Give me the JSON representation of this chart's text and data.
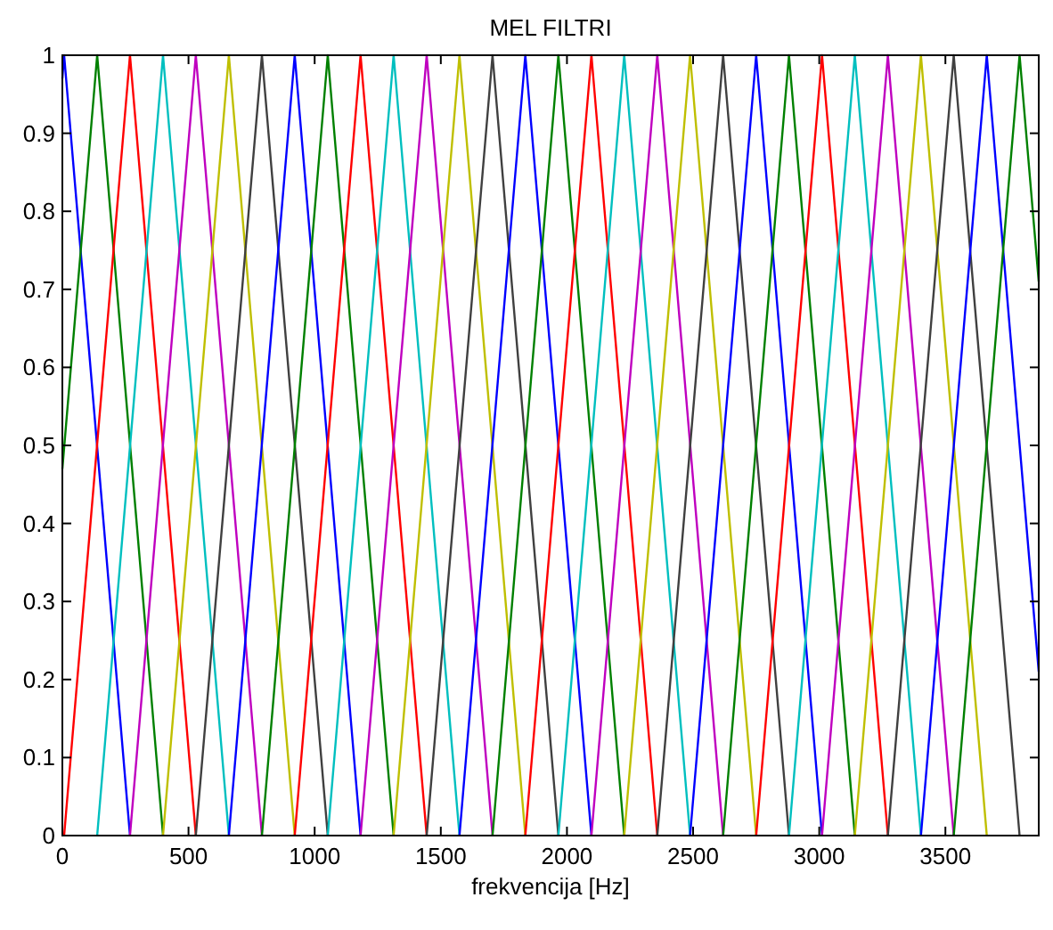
{
  "chart_data": {
    "type": "line",
    "title": "MEL FILTRI",
    "xlabel": "frekvencija [Hz]",
    "xlim": [
      0,
      3870
    ],
    "ylim": [
      0,
      1
    ],
    "xticks": [
      0,
      500,
      1000,
      1500,
      2000,
      2500,
      3000,
      3500
    ],
    "yticks": [
      0,
      0.1,
      0.2,
      0.3,
      0.4,
      0.5,
      0.6,
      0.7,
      0.8,
      0.9,
      1
    ],
    "grid": false,
    "marker": "none",
    "line_style": "solid",
    "series": [
      {
        "color": "#0000ff",
        "x": [
          0,
          7,
          268
        ],
        "values": [
          0.97,
          1,
          0
        ]
      },
      {
        "color": "#008000",
        "x": [
          0,
          138,
          399
        ],
        "values": [
          0.47,
          1,
          0
        ]
      },
      {
        "color": "#ff0000",
        "x": [
          7,
          268,
          529
        ],
        "values": [
          0,
          1,
          0
        ]
      },
      {
        "color": "#00bfbf",
        "x": [
          138,
          399,
          660
        ],
        "values": [
          0,
          1,
          0
        ]
      },
      {
        "color": "#bf00bf",
        "x": [
          268,
          529,
          791
        ],
        "values": [
          0,
          1,
          0
        ]
      },
      {
        "color": "#bfbf00",
        "x": [
          399,
          660,
          921
        ],
        "values": [
          0,
          1,
          0
        ]
      },
      {
        "color": "#404040",
        "x": [
          529,
          791,
          1052
        ],
        "values": [
          0,
          1,
          0
        ]
      },
      {
        "color": "#0000ff",
        "x": [
          660,
          921,
          1182
        ],
        "values": [
          0,
          1,
          0
        ]
      },
      {
        "color": "#008000",
        "x": [
          791,
          1052,
          1313
        ],
        "values": [
          0,
          1,
          0
        ]
      },
      {
        "color": "#ff0000",
        "x": [
          921,
          1182,
          1444
        ],
        "values": [
          0,
          1,
          0
        ]
      },
      {
        "color": "#00bfbf",
        "x": [
          1052,
          1313,
          1574
        ],
        "values": [
          0,
          1,
          0
        ]
      },
      {
        "color": "#bf00bf",
        "x": [
          1182,
          1444,
          1705
        ],
        "values": [
          0,
          1,
          0
        ]
      },
      {
        "color": "#bfbf00",
        "x": [
          1313,
          1574,
          1835
        ],
        "values": [
          0,
          1,
          0
        ]
      },
      {
        "color": "#404040",
        "x": [
          1444,
          1705,
          1966
        ],
        "values": [
          0,
          1,
          0
        ]
      },
      {
        "color": "#0000ff",
        "x": [
          1574,
          1835,
          2097
        ],
        "values": [
          0,
          1,
          0
        ]
      },
      {
        "color": "#008000",
        "x": [
          1705,
          1966,
          2227
        ],
        "values": [
          0,
          1,
          0
        ]
      },
      {
        "color": "#ff0000",
        "x": [
          1835,
          2097,
          2358
        ],
        "values": [
          0,
          1,
          0
        ]
      },
      {
        "color": "#00bfbf",
        "x": [
          1966,
          2227,
          2488
        ],
        "values": [
          0,
          1,
          0
        ]
      },
      {
        "color": "#bf00bf",
        "x": [
          2097,
          2358,
          2619
        ],
        "values": [
          0,
          1,
          0
        ]
      },
      {
        "color": "#bfbf00",
        "x": [
          2227,
          2488,
          2750
        ],
        "values": [
          0,
          1,
          0
        ]
      },
      {
        "color": "#404040",
        "x": [
          2358,
          2619,
          2880
        ],
        "values": [
          0,
          1,
          0
        ]
      },
      {
        "color": "#0000ff",
        "x": [
          2488,
          2750,
          3011
        ],
        "values": [
          0,
          1,
          0
        ]
      },
      {
        "color": "#008000",
        "x": [
          2619,
          2880,
          3141
        ],
        "values": [
          0,
          1,
          0
        ]
      },
      {
        "color": "#ff0000",
        "x": [
          2750,
          3011,
          3272
        ],
        "values": [
          0,
          1,
          0
        ]
      },
      {
        "color": "#00bfbf",
        "x": [
          2880,
          3141,
          3403
        ],
        "values": [
          0,
          1,
          0
        ]
      },
      {
        "color": "#bf00bf",
        "x": [
          3011,
          3272,
          3533
        ],
        "values": [
          0,
          1,
          0
        ]
      },
      {
        "color": "#bfbf00",
        "x": [
          3141,
          3403,
          3664
        ],
        "values": [
          0,
          1,
          0
        ]
      },
      {
        "color": "#404040",
        "x": [
          3272,
          3533,
          3794
        ],
        "values": [
          0,
          1,
          0
        ]
      },
      {
        "color": "#0000ff",
        "x": [
          3403,
          3664,
          3870
        ],
        "values": [
          0,
          1,
          0.21
        ]
      },
      {
        "color": "#008000",
        "x": [
          3533,
          3794,
          3870
        ],
        "values": [
          0,
          1,
          0.71
        ]
      }
    ]
  }
}
